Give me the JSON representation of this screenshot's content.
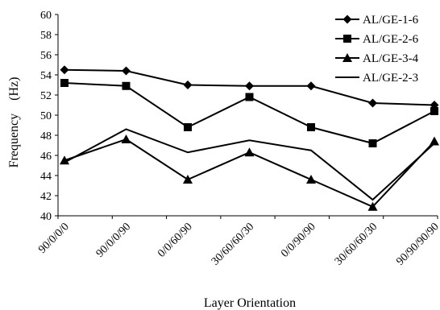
{
  "chart_data": {
    "type": "line",
    "title": "",
    "xlabel": "Layer Orientation",
    "ylabel": "Frequency　(Hz)",
    "categories": [
      "90/0/0/0",
      "90/0/0/90",
      "0/0/60/90",
      "30/60/60/30",
      "0/0/90/90",
      "30/60/60/30",
      "90/90/90/90"
    ],
    "ylim": [
      40,
      60
    ],
    "yticks": [
      40,
      42,
      44,
      46,
      48,
      50,
      52,
      54,
      56,
      58,
      60
    ],
    "grid": false,
    "legend_position": "top-right",
    "series": [
      {
        "name": "AL/GE-1-6",
        "marker": "diamond",
        "values": [
          54.5,
          54.4,
          53.0,
          52.9,
          52.9,
          51.2,
          51.0
        ]
      },
      {
        "name": "AL/GE-2-6",
        "marker": "square",
        "values": [
          53.2,
          52.9,
          48.8,
          51.8,
          48.8,
          47.2,
          50.4
        ]
      },
      {
        "name": "AL/GE-3-4",
        "marker": "triangle",
        "values": [
          45.5,
          47.6,
          43.6,
          46.3,
          43.6,
          40.9,
          47.4
        ]
      },
      {
        "name": "AL/GE-2-3",
        "marker": "none",
        "values": [
          45.3,
          48.6,
          46.3,
          47.5,
          46.5,
          41.6,
          47.2
        ]
      }
    ]
  }
}
